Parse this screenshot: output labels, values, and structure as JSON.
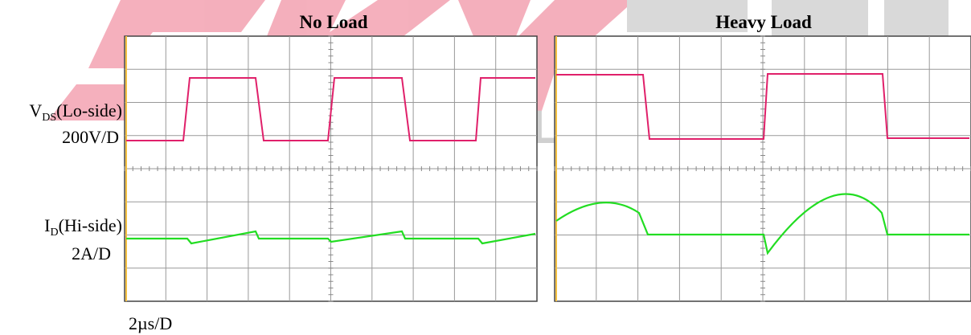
{
  "watermark": "ELECTRONIC",
  "panels": [
    {
      "title": "No Load"
    },
    {
      "title": "Heavy Load"
    }
  ],
  "labels": {
    "vds": {
      "symbol": "V",
      "sub": "DS",
      "rest": "(Lo-side)",
      "scale": "200V/D"
    },
    "id": {
      "symbol": "I",
      "sub": "D",
      "rest": "(Hi-side)",
      "scale": "2A/D"
    },
    "time": "2µs/D"
  }
}
